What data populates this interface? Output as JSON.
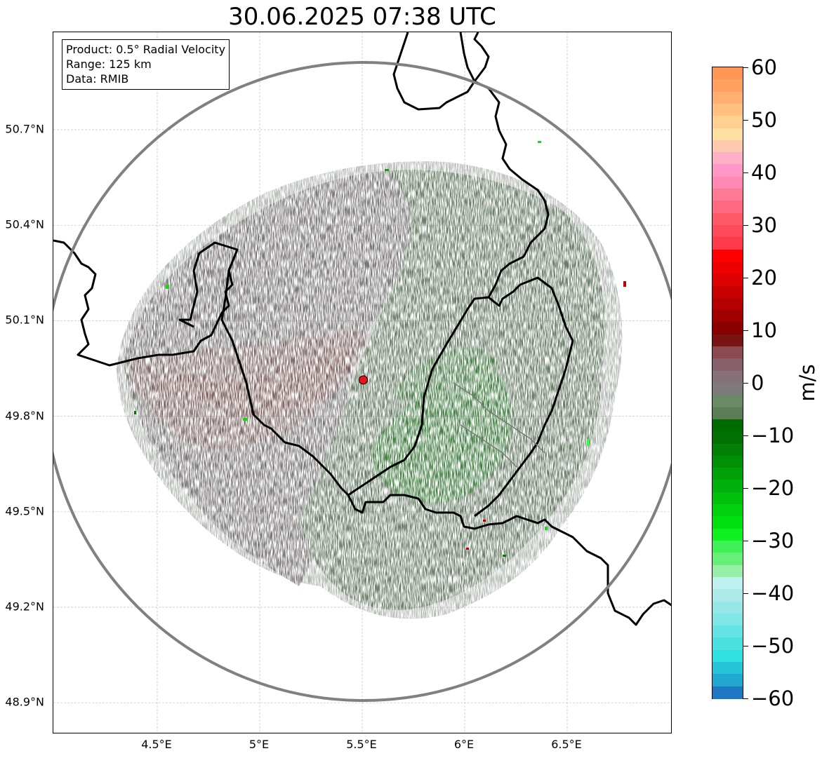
{
  "title": "30.06.2025 07:38 UTC",
  "info_box": {
    "line1": "Product: 0.5° Radial Velocity",
    "line2": "Range: 125 km",
    "line3": "Data: RMIB"
  },
  "axes": {
    "lon_range": [
      4.0,
      7.0
    ],
    "lat_range": [
      48.8,
      51.1
    ],
    "y_ticks": [
      {
        "value": 50.7,
        "label": "50.7°N"
      },
      {
        "value": 50.4,
        "label": "50.4°N"
      },
      {
        "value": 50.1,
        "label": "50.1°N"
      },
      {
        "value": 49.8,
        "label": "49.8°N"
      },
      {
        "value": 49.5,
        "label": "49.5°N"
      },
      {
        "value": 49.2,
        "label": "49.2°N"
      },
      {
        "value": 48.9,
        "label": "48.9°N"
      }
    ],
    "x_ticks": [
      {
        "value": 4.5,
        "label": "4.5°E"
      },
      {
        "value": 5.0,
        "label": "5°E"
      },
      {
        "value": 5.5,
        "label": "5.5°E"
      },
      {
        "value": 6.0,
        "label": "6°E"
      },
      {
        "value": 6.5,
        "label": "6.5°E"
      }
    ]
  },
  "radar": {
    "site_lon": 5.505,
    "site_lat": 49.914,
    "range_km": 125,
    "site_color": "#e8141d",
    "range_ring_color": "#808080"
  },
  "colorbar": {
    "label": "m/s",
    "min": -60,
    "max": 60,
    "ticks": [
      {
        "value": 60,
        "label": "60"
      },
      {
        "value": 50,
        "label": "50"
      },
      {
        "value": 40,
        "label": "40"
      },
      {
        "value": 30,
        "label": "30"
      },
      {
        "value": 20,
        "label": "20"
      },
      {
        "value": 10,
        "label": "10"
      },
      {
        "value": 0,
        "label": "0"
      },
      {
        "value": -10,
        "label": "−10"
      },
      {
        "value": -20,
        "label": "−20"
      },
      {
        "value": -30,
        "label": "−30"
      },
      {
        "value": -40,
        "label": "−40"
      },
      {
        "value": -50,
        "label": "−50"
      },
      {
        "value": -60,
        "label": "−60"
      }
    ],
    "colors": [
      "#1f77c4",
      "#22a8d0",
      "#27c3d6",
      "#2fe0e0",
      "#4ae0e0",
      "#66e3e3",
      "#80e6e6",
      "#96e8e8",
      "#aceaea",
      "#bff0f0",
      "#98f0a8",
      "#66f078",
      "#40f058",
      "#10f020",
      "#00e010",
      "#00d00e",
      "#00c00c",
      "#00b00a",
      "#00a008",
      "#009006",
      "#008004",
      "#007002",
      "#006a02",
      "#5a7d55",
      "#6a8a66",
      "#7f7a7a",
      "#86707a",
      "#85606a",
      "#8a4a50",
      "#7a1414",
      "#8a0000",
      "#a00000",
      "#b50000",
      "#c80000",
      "#dc0000",
      "#ef0000",
      "#ff0000",
      "#ff3a4a",
      "#ff4a5a",
      "#ff5a6a",
      "#ff6a80",
      "#ff7a95",
      "#ff88b4",
      "#ff96c8",
      "#ffb0c8",
      "#ffc9b0",
      "#ffe0a0",
      "#ffd090",
      "#ffc080",
      "#ffb070",
      "#ffa060",
      "#ff9555"
    ]
  },
  "colors": {
    "approaching_strong": "#008000",
    "approaching_weak": "#5a7d55",
    "zero_band": "#86717c",
    "receding_weak": "#8a5560",
    "receding_strong": "#7a0000",
    "border": "#000000",
    "grid": "#c0c0c0"
  }
}
